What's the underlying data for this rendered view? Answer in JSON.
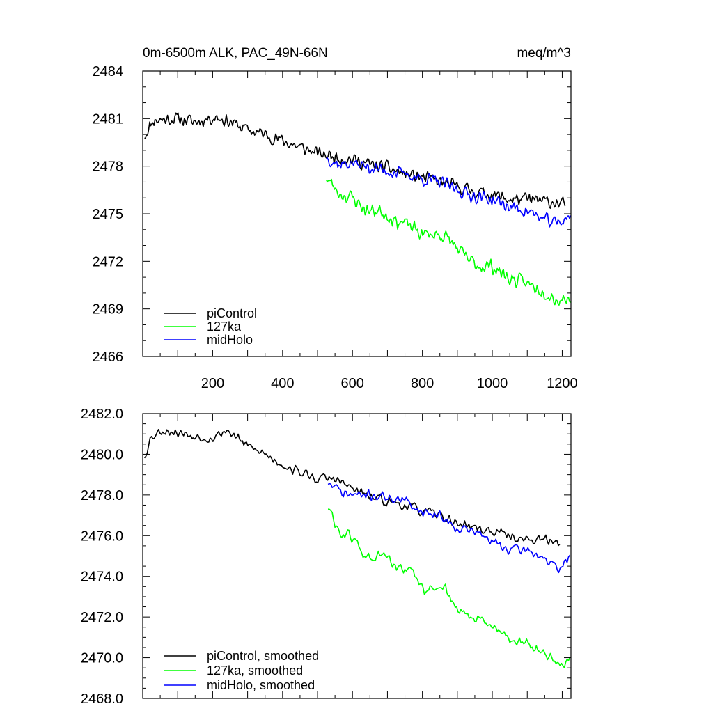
{
  "chart_data": [
    {
      "type": "line",
      "title_left": "0m-6500m ALK, PAC_49N-66N",
      "title_right": "meq/m^3",
      "xlabel": "",
      "ylabel": "",
      "xlim": [
        0,
        1225
      ],
      "ylim": [
        2466,
        2484
      ],
      "x_ticks": [
        200,
        400,
        600,
        800,
        1000,
        1200
      ],
      "y_ticks": [
        2466,
        2469,
        2472,
        2475,
        2478,
        2481,
        2484
      ],
      "show_x_tick_labels": true,
      "legend": [
        "piControl",
        "127ka",
        "midHolo"
      ],
      "legend_position": "bottom-left",
      "series": [
        {
          "name": "piControl",
          "color": "#000000",
          "x_start": 5,
          "x_end": 1210,
          "noise": 0.5,
          "seed": 11,
          "trend": [
            [
              5,
              2479.9
            ],
            [
              30,
              2480.9
            ],
            [
              100,
              2481.0
            ],
            [
              150,
              2480.8
            ],
            [
              210,
              2481.1
            ],
            [
              250,
              2480.8
            ],
            [
              300,
              2480.3
            ],
            [
              350,
              2480.0
            ],
            [
              400,
              2479.6
            ],
            [
              450,
              2479.2
            ],
            [
              500,
              2478.8
            ],
            [
              550,
              2478.6
            ],
            [
              600,
              2478.4
            ],
            [
              650,
              2478.1
            ],
            [
              700,
              2477.9
            ],
            [
              750,
              2477.5
            ],
            [
              800,
              2477.3
            ],
            [
              850,
              2477.0
            ],
            [
              900,
              2476.7
            ],
            [
              950,
              2476.4
            ],
            [
              1000,
              2476.2
            ],
            [
              1050,
              2475.9
            ],
            [
              1100,
              2475.9
            ],
            [
              1150,
              2475.8
            ],
            [
              1210,
              2475.6
            ]
          ]
        },
        {
          "name": "127ka",
          "color": "#00ff00",
          "x_start": 525,
          "x_end": 1225,
          "noise": 0.55,
          "seed": 23,
          "trend": [
            [
              525,
              2477.3
            ],
            [
              560,
              2476.3
            ],
            [
              600,
              2476.0
            ],
            [
              640,
              2475.2
            ],
            [
              680,
              2475.2
            ],
            [
              720,
              2474.6
            ],
            [
              760,
              2474.3
            ],
            [
              800,
              2473.7
            ],
            [
              850,
              2473.7
            ],
            [
              880,
              2473.3
            ],
            [
              920,
              2472.3
            ],
            [
              960,
              2471.7
            ],
            [
              1000,
              2471.7
            ],
            [
              1050,
              2470.9
            ],
            [
              1100,
              2470.6
            ],
            [
              1150,
              2470.1
            ],
            [
              1190,
              2469.5
            ],
            [
              1225,
              2469.8
            ]
          ]
        },
        {
          "name": "midHolo",
          "color": "#0000ff",
          "x_start": 525,
          "x_end": 1225,
          "noise": 0.5,
          "seed": 37,
          "trend": [
            [
              525,
              2478.6
            ],
            [
              560,
              2478.1
            ],
            [
              600,
              2478.2
            ],
            [
              650,
              2477.9
            ],
            [
              700,
              2477.7
            ],
            [
              750,
              2477.5
            ],
            [
              800,
              2477.2
            ],
            [
              850,
              2477.0
            ],
            [
              900,
              2476.5
            ],
            [
              950,
              2476.1
            ],
            [
              1000,
              2475.9
            ],
            [
              1050,
              2475.4
            ],
            [
              1100,
              2475.2
            ],
            [
              1150,
              2474.6
            ],
            [
              1190,
              2474.4
            ],
            [
              1225,
              2475.0
            ]
          ]
        }
      ]
    },
    {
      "type": "line",
      "title_left": "",
      "title_right": "",
      "xlabel": "",
      "ylabel": "",
      "xlim": [
        0,
        1225
      ],
      "ylim": [
        2468.0,
        2482.0
      ],
      "x_ticks": [
        200,
        400,
        600,
        800,
        1000,
        1200
      ],
      "y_ticks": [
        "2468.0",
        "2470.0",
        "2472.0",
        "2474.0",
        "2476.0",
        "2478.0",
        "2480.0",
        "2482.0"
      ],
      "show_x_tick_labels": false,
      "legend": [
        "piControl, smoothed",
        "127ka, smoothed",
        "midHolo, smoothed"
      ],
      "legend_position": "bottom-left",
      "series": [
        {
          "name": "piControl, smoothed",
          "color": "#000000",
          "x_start": 5,
          "x_end": 1195,
          "noise": 0.3,
          "seed": 53,
          "trend": [
            [
              5,
              2479.9
            ],
            [
              25,
              2480.9
            ],
            [
              60,
              2481.2
            ],
            [
              150,
              2480.9
            ],
            [
              200,
              2480.8
            ],
            [
              240,
              2481.2
            ],
            [
              300,
              2480.4
            ],
            [
              350,
              2480.0
            ],
            [
              400,
              2479.5
            ],
            [
              450,
              2479.1
            ],
            [
              500,
              2478.8
            ],
            [
              550,
              2478.8
            ],
            [
              600,
              2478.3
            ],
            [
              650,
              2477.9
            ],
            [
              700,
              2477.7
            ],
            [
              750,
              2477.5
            ],
            [
              800,
              2477.2
            ],
            [
              850,
              2477.0
            ],
            [
              900,
              2476.6
            ],
            [
              950,
              2476.4
            ],
            [
              1000,
              2476.2
            ],
            [
              1050,
              2476.0
            ],
            [
              1100,
              2475.8
            ],
            [
              1150,
              2475.8
            ],
            [
              1195,
              2475.6
            ]
          ]
        },
        {
          "name": "127ka, smoothed",
          "color": "#00ff00",
          "x_start": 530,
          "x_end": 1225,
          "noise": 0.35,
          "seed": 61,
          "trend": [
            [
              530,
              2477.4
            ],
            [
              565,
              2476.1
            ],
            [
              600,
              2475.9
            ],
            [
              640,
              2474.9
            ],
            [
              690,
              2475.0
            ],
            [
              730,
              2474.4
            ],
            [
              770,
              2474.2
            ],
            [
              810,
              2473.2
            ],
            [
              860,
              2473.6
            ],
            [
              900,
              2472.3
            ],
            [
              950,
              2471.9
            ],
            [
              1000,
              2471.5
            ],
            [
              1050,
              2471.0
            ],
            [
              1100,
              2470.6
            ],
            [
              1150,
              2470.1
            ],
            [
              1190,
              2469.6
            ],
            [
              1225,
              2470.0
            ]
          ]
        },
        {
          "name": "midHolo, smoothed",
          "color": "#0000ff",
          "x_start": 530,
          "x_end": 1225,
          "noise": 0.3,
          "seed": 71,
          "trend": [
            [
              530,
              2478.6
            ],
            [
              570,
              2478.1
            ],
            [
              600,
              2478.0
            ],
            [
              650,
              2478.0
            ],
            [
              700,
              2477.9
            ],
            [
              750,
              2477.7
            ],
            [
              800,
              2477.2
            ],
            [
              850,
              2477.0
            ],
            [
              900,
              2476.4
            ],
            [
              950,
              2476.2
            ],
            [
              1000,
              2475.7
            ],
            [
              1050,
              2475.3
            ],
            [
              1100,
              2475.3
            ],
            [
              1150,
              2474.9
            ],
            [
              1190,
              2474.2
            ],
            [
              1225,
              2475.2
            ]
          ]
        }
      ]
    }
  ]
}
